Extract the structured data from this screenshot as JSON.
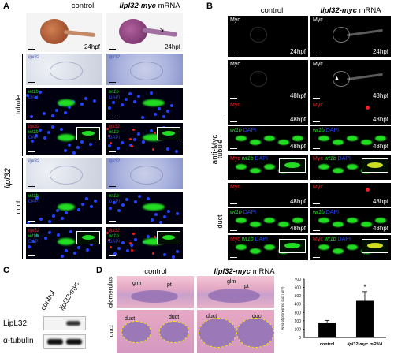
{
  "panels": {
    "A": {
      "label": "A",
      "col_control": "control",
      "col_mrna_gene": "lipl32-myc",
      "col_mrna_suffix": "mRNA",
      "row_group": "lipl32",
      "row_tubule": "tubule",
      "row_duct": "duct",
      "hpf": "24hpf",
      "m_lipl32": "lipl32",
      "m_wt1b": "wt1b",
      "m_dapi": "DAPI"
    },
    "B": {
      "label": "B",
      "col_control": "control",
      "col_mrna_gene": "lipl32-myc",
      "col_mrna_suffix": "mRNA",
      "row_group": "anti-Myc",
      "row_tubule": "tubule",
      "row_duct": "duct",
      "myc": "Myc",
      "wt1b": "wt1b",
      "dapi": "DAPI",
      "hpf24": "24hpf",
      "hpf48": "48hpf"
    },
    "C": {
      "label": "C",
      "col_control": "control",
      "col_mrna": "lipl32-myc",
      "band1": "LipL32",
      "band2": "α-tubulin"
    },
    "D": {
      "label": "D",
      "col_control": "control",
      "col_mrna_gene": "lipl32-myc",
      "col_mrna_suffix": "mRNA",
      "row_glom": "glomerulus",
      "row_duct": "duct",
      "glm": "glm",
      "pt": "pt",
      "duct": "duct"
    }
  },
  "chart_data": {
    "type": "bar",
    "categories": [
      "control",
      "lipl32-myc mRNA"
    ],
    "values": [
      180,
      440
    ],
    "errors": [
      25,
      110
    ],
    "ylabel": "Area of pronephric duct (µm²)",
    "ylim": [
      0,
      700
    ],
    "yticks": [
      0,
      100,
      200,
      300,
      400,
      500,
      600,
      700
    ],
    "significance": "*"
  },
  "colors": {
    "wt1b": "#22dd22",
    "dapi": "#2244ff",
    "myc": "#ee2222",
    "ish": "#4455aa"
  }
}
